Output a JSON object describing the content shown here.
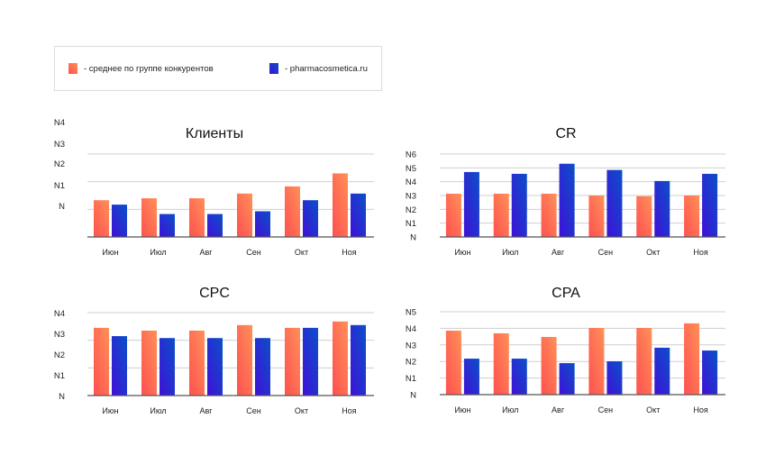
{
  "legend": {
    "items": [
      {
        "label": "- среднее по группе конкурентов",
        "color_from": "#ff5050",
        "color_to": "#ff9058"
      },
      {
        "label": "- pharmacosmetica.ru",
        "color_from": "#4010d8",
        "color_to": "#0a50c8"
      }
    ]
  },
  "chart_data": [
    {
      "type": "bar",
      "title": "Клиенты",
      "categories": [
        "Июн",
        "Июл",
        "Авг",
        "Сен",
        "Окт",
        "Ноя"
      ],
      "y_tick_labels": [
        "N",
        "N1",
        "N2",
        "N3",
        "N4"
      ],
      "ylim": [
        0,
        3
      ],
      "gridlines": [
        1,
        2,
        3
      ],
      "series": [
        {
          "name": "- среднее по группе конкурентов",
          "values": [
            1.33,
            1.4,
            1.4,
            1.57,
            1.83,
            2.3
          ]
        },
        {
          "name": "- pharmacosmetica.ru",
          "values": [
            1.17,
            0.83,
            0.83,
            0.93,
            1.33,
            1.57
          ]
        }
      ]
    },
    {
      "type": "bar",
      "title": "CR",
      "categories": [
        "Июн",
        "Июл",
        "Авг",
        "Сен",
        "Окт",
        "Ноя"
      ],
      "y_tick_labels": [
        "N",
        "N1",
        "N2",
        "N3",
        "N4",
        "N5",
        "N6"
      ],
      "ylim": [
        0,
        6
      ],
      "gridlines": [
        1,
        2,
        3,
        4,
        5,
        6
      ],
      "series": [
        {
          "name": "- среднее по группе конкурентов",
          "values": [
            3.13,
            3.13,
            3.13,
            3.0,
            2.95,
            3.0
          ]
        },
        {
          "name": "- pharmacosmetica.ru",
          "values": [
            4.7,
            4.57,
            5.3,
            4.85,
            4.05,
            4.57
          ]
        }
      ]
    },
    {
      "type": "bar",
      "title": "CPC",
      "categories": [
        "Июн",
        "Июл",
        "Авг",
        "Сен",
        "Окт",
        "Ноя"
      ],
      "y_tick_labels": [
        "N",
        "N1",
        "N2",
        "N3",
        "N4"
      ],
      "ylim": [
        0,
        3
      ],
      "gridlines": [
        1,
        2,
        3
      ],
      "series": [
        {
          "name": "- среднее по группе конкурентов",
          "values": [
            2.45,
            2.35,
            2.35,
            2.55,
            2.45,
            2.68
          ]
        },
        {
          "name": "- pharmacosmetica.ru",
          "values": [
            2.15,
            2.08,
            2.08,
            2.08,
            2.45,
            2.55
          ]
        }
      ]
    },
    {
      "type": "bar",
      "title": "CPA",
      "categories": [
        "Июн",
        "Июл",
        "Авг",
        "Сен",
        "Окт",
        "Ноя"
      ],
      "y_tick_labels": [
        "N",
        "N1",
        "N2",
        "N3",
        "N4",
        "N5"
      ],
      "ylim": [
        0,
        5
      ],
      "gridlines": [
        1,
        2,
        3,
        4,
        5
      ],
      "series": [
        {
          "name": "- среднее по группе конкурентов",
          "values": [
            3.86,
            3.7,
            3.48,
            4.02,
            4.02,
            4.3
          ]
        },
        {
          "name": "- pharmacosmetica.ru",
          "values": [
            2.17,
            2.17,
            1.9,
            2.01,
            2.83,
            2.66
          ]
        }
      ]
    }
  ]
}
